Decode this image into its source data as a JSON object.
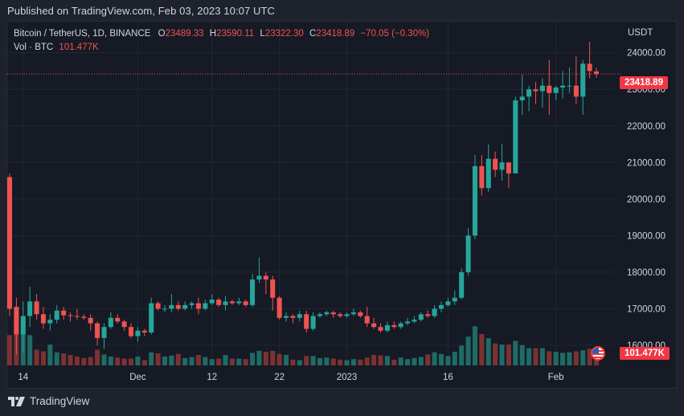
{
  "header": {
    "published": "Published on TradingView.com, Feb 03, 2023 10:07 UTC"
  },
  "legend": {
    "symbol": "Bitcoin / TetherUS, 1D, BINANCE",
    "o_label": "O",
    "o_value": "23489.33",
    "h_label": "H",
    "h_value": "23590.11",
    "l_label": "L",
    "l_value": "23322.30",
    "c_label": "C",
    "c_value": "23418.89",
    "change": "−70.05 (−0.30%)",
    "vol_label": "Vol · BTC",
    "vol_value": "101.477K"
  },
  "price_axis": {
    "currency": "USDT",
    "last_price_tag": "23418.89",
    "volume_tag": "101.477K"
  },
  "footer": {
    "brand": "TradingView"
  },
  "colors": {
    "up": "#26a69a",
    "down": "#ef5350",
    "up_vol": "#1f6b66",
    "down_vol": "#7c3232",
    "price_line": "#ef5350"
  },
  "chart_data": {
    "type": "candlestick",
    "interval": "1D",
    "y_ticks": [
      "24000.00",
      "23000.00",
      "22000.00",
      "21000.00",
      "20000.00",
      "19000.00",
      "18000.00",
      "17000.00",
      "16000.00"
    ],
    "ylim": [
      15450,
      24850
    ],
    "x_ticks": [
      {
        "label": "14",
        "i": 2
      },
      {
        "label": "Dec",
        "i": 19
      },
      {
        "label": "12",
        "i": 30
      },
      {
        "label": "22",
        "i": 40
      },
      {
        "label": "2023",
        "i": 50
      },
      {
        "label": "16",
        "i": 65
      },
      {
        "label": "Feb",
        "i": 81
      }
    ],
    "last_price": 23418.89,
    "ohlcv": [
      [
        20600,
        20700,
        16800,
        17000,
        58
      ],
      [
        17050,
        17300,
        15750,
        16300,
        90
      ],
      [
        16300,
        17200,
        15800,
        16800,
        62
      ],
      [
        16800,
        17600,
        16500,
        17200,
        58
      ],
      [
        17200,
        17400,
        16700,
        16850,
        30
      ],
      [
        16850,
        17050,
        16450,
        16600,
        27
      ],
      [
        16600,
        16850,
        16400,
        16700,
        40
      ],
      [
        16700,
        17100,
        16600,
        16950,
        25
      ],
      [
        16950,
        17050,
        16700,
        16820,
        23
      ],
      [
        16820,
        16900,
        16650,
        16800,
        20
      ],
      [
        16800,
        17000,
        16700,
        16780,
        17
      ],
      [
        16780,
        16850,
        16700,
        16750,
        14
      ],
      [
        16750,
        16850,
        16400,
        16600,
        16
      ],
      [
        16600,
        16650,
        16000,
        16200,
        30
      ],
      [
        16200,
        16600,
        15900,
        16500,
        21
      ],
      [
        16500,
        16900,
        16450,
        16750,
        17
      ],
      [
        16750,
        16850,
        16600,
        16650,
        15
      ],
      [
        16650,
        16700,
        16400,
        16500,
        13
      ],
      [
        16500,
        16600,
        16200,
        16250,
        13
      ],
      [
        16250,
        16500,
        16100,
        16400,
        17
      ],
      [
        16400,
        16450,
        16250,
        16350,
        10
      ],
      [
        16350,
        17300,
        16300,
        17150,
        25
      ],
      [
        17150,
        17200,
        16950,
        17000,
        23
      ],
      [
        17000,
        17100,
        16900,
        17000,
        17
      ],
      [
        17000,
        17400,
        16900,
        17100,
        19
      ],
      [
        17100,
        17200,
        16950,
        17000,
        22
      ],
      [
        17000,
        17200,
        16950,
        17100,
        14
      ],
      [
        17100,
        17200,
        17000,
        17150,
        16
      ],
      [
        17150,
        17300,
        16850,
        17000,
        20
      ],
      [
        17000,
        17250,
        16950,
        17150,
        16
      ],
      [
        17150,
        17400,
        17100,
        17250,
        12
      ],
      [
        17250,
        17300,
        17050,
        17100,
        13
      ],
      [
        17100,
        17350,
        16950,
        17200,
        20
      ],
      [
        17200,
        17250,
        17100,
        17150,
        13
      ],
      [
        17150,
        17300,
        17100,
        17200,
        13
      ],
      [
        17200,
        17250,
        17050,
        17100,
        12
      ],
      [
        17100,
        17950,
        17050,
        17800,
        24
      ],
      [
        17800,
        18400,
        17700,
        17900,
        28
      ],
      [
        17900,
        18000,
        17400,
        17800,
        26
      ],
      [
        17800,
        17900,
        16950,
        17300,
        28
      ],
      [
        17300,
        17350,
        16700,
        16750,
        22
      ],
      [
        16750,
        16900,
        16650,
        16800,
        20
      ],
      [
        16800,
        16850,
        16600,
        16750,
        11
      ],
      [
        16750,
        16950,
        16650,
        16850,
        10
      ],
      [
        16850,
        16950,
        16350,
        16450,
        18
      ],
      [
        16450,
        16900,
        16400,
        16800,
        18
      ],
      [
        16800,
        16900,
        16750,
        16850,
        14
      ],
      [
        16850,
        16950,
        16800,
        16900,
        15
      ],
      [
        16900,
        16950,
        16750,
        16850,
        13
      ],
      [
        16850,
        16900,
        16750,
        16800,
        11
      ],
      [
        16800,
        16900,
        16750,
        16850,
        10
      ],
      [
        16850,
        17000,
        16800,
        16900,
        12
      ],
      [
        16900,
        16950,
        16750,
        16800,
        11
      ],
      [
        16800,
        17050,
        16500,
        16600,
        15
      ],
      [
        16600,
        16750,
        16450,
        16500,
        20
      ],
      [
        16500,
        16600,
        16350,
        16400,
        19
      ],
      [
        16400,
        16650,
        16350,
        16550,
        18
      ],
      [
        16550,
        16650,
        16450,
        16500,
        11
      ],
      [
        16500,
        16650,
        16450,
        16600,
        15
      ],
      [
        16600,
        16750,
        16550,
        16650,
        12
      ],
      [
        16650,
        16800,
        16600,
        16700,
        14
      ],
      [
        16700,
        16900,
        16650,
        16850,
        16
      ],
      [
        16850,
        16950,
        16750,
        16800,
        21
      ],
      [
        16800,
        17100,
        16750,
        17000,
        25
      ],
      [
        17000,
        17200,
        16900,
        17100,
        22
      ],
      [
        17100,
        17300,
        17050,
        17200,
        18
      ],
      [
        17200,
        17500,
        17100,
        17300,
        26
      ],
      [
        17300,
        18100,
        17250,
        18000,
        38
      ],
      [
        18000,
        19200,
        17900,
        19000,
        55
      ],
      [
        19000,
        21200,
        18900,
        20900,
        75
      ],
      [
        20900,
        21200,
        20100,
        20300,
        60
      ],
      [
        20300,
        21500,
        20200,
        21100,
        52
      ],
      [
        21100,
        21300,
        20600,
        20800,
        42
      ],
      [
        20800,
        21500,
        20500,
        21000,
        40
      ],
      [
        21000,
        21000,
        20300,
        20700,
        40
      ],
      [
        20700,
        22800,
        20700,
        22700,
        47
      ],
      [
        22700,
        23400,
        22300,
        22800,
        39
      ],
      [
        22800,
        23100,
        22400,
        23000,
        33
      ],
      [
        23000,
        23200,
        22600,
        22950,
        33
      ],
      [
        22950,
        23300,
        22500,
        23100,
        33
      ],
      [
        23100,
        23800,
        22300,
        22900,
        27
      ],
      [
        22900,
        23100,
        22700,
        23050,
        26
      ],
      [
        23050,
        23500,
        22750,
        23100,
        24
      ],
      [
        23100,
        23600,
        22900,
        23100,
        25
      ],
      [
        23100,
        23900,
        22600,
        22800,
        27
      ],
      [
        22800,
        23800,
        22300,
        23700,
        29
      ],
      [
        23700,
        24300,
        23300,
        23500,
        32
      ],
      [
        23489.33,
        23590.11,
        23322.3,
        23418.89,
        22
      ]
    ]
  }
}
